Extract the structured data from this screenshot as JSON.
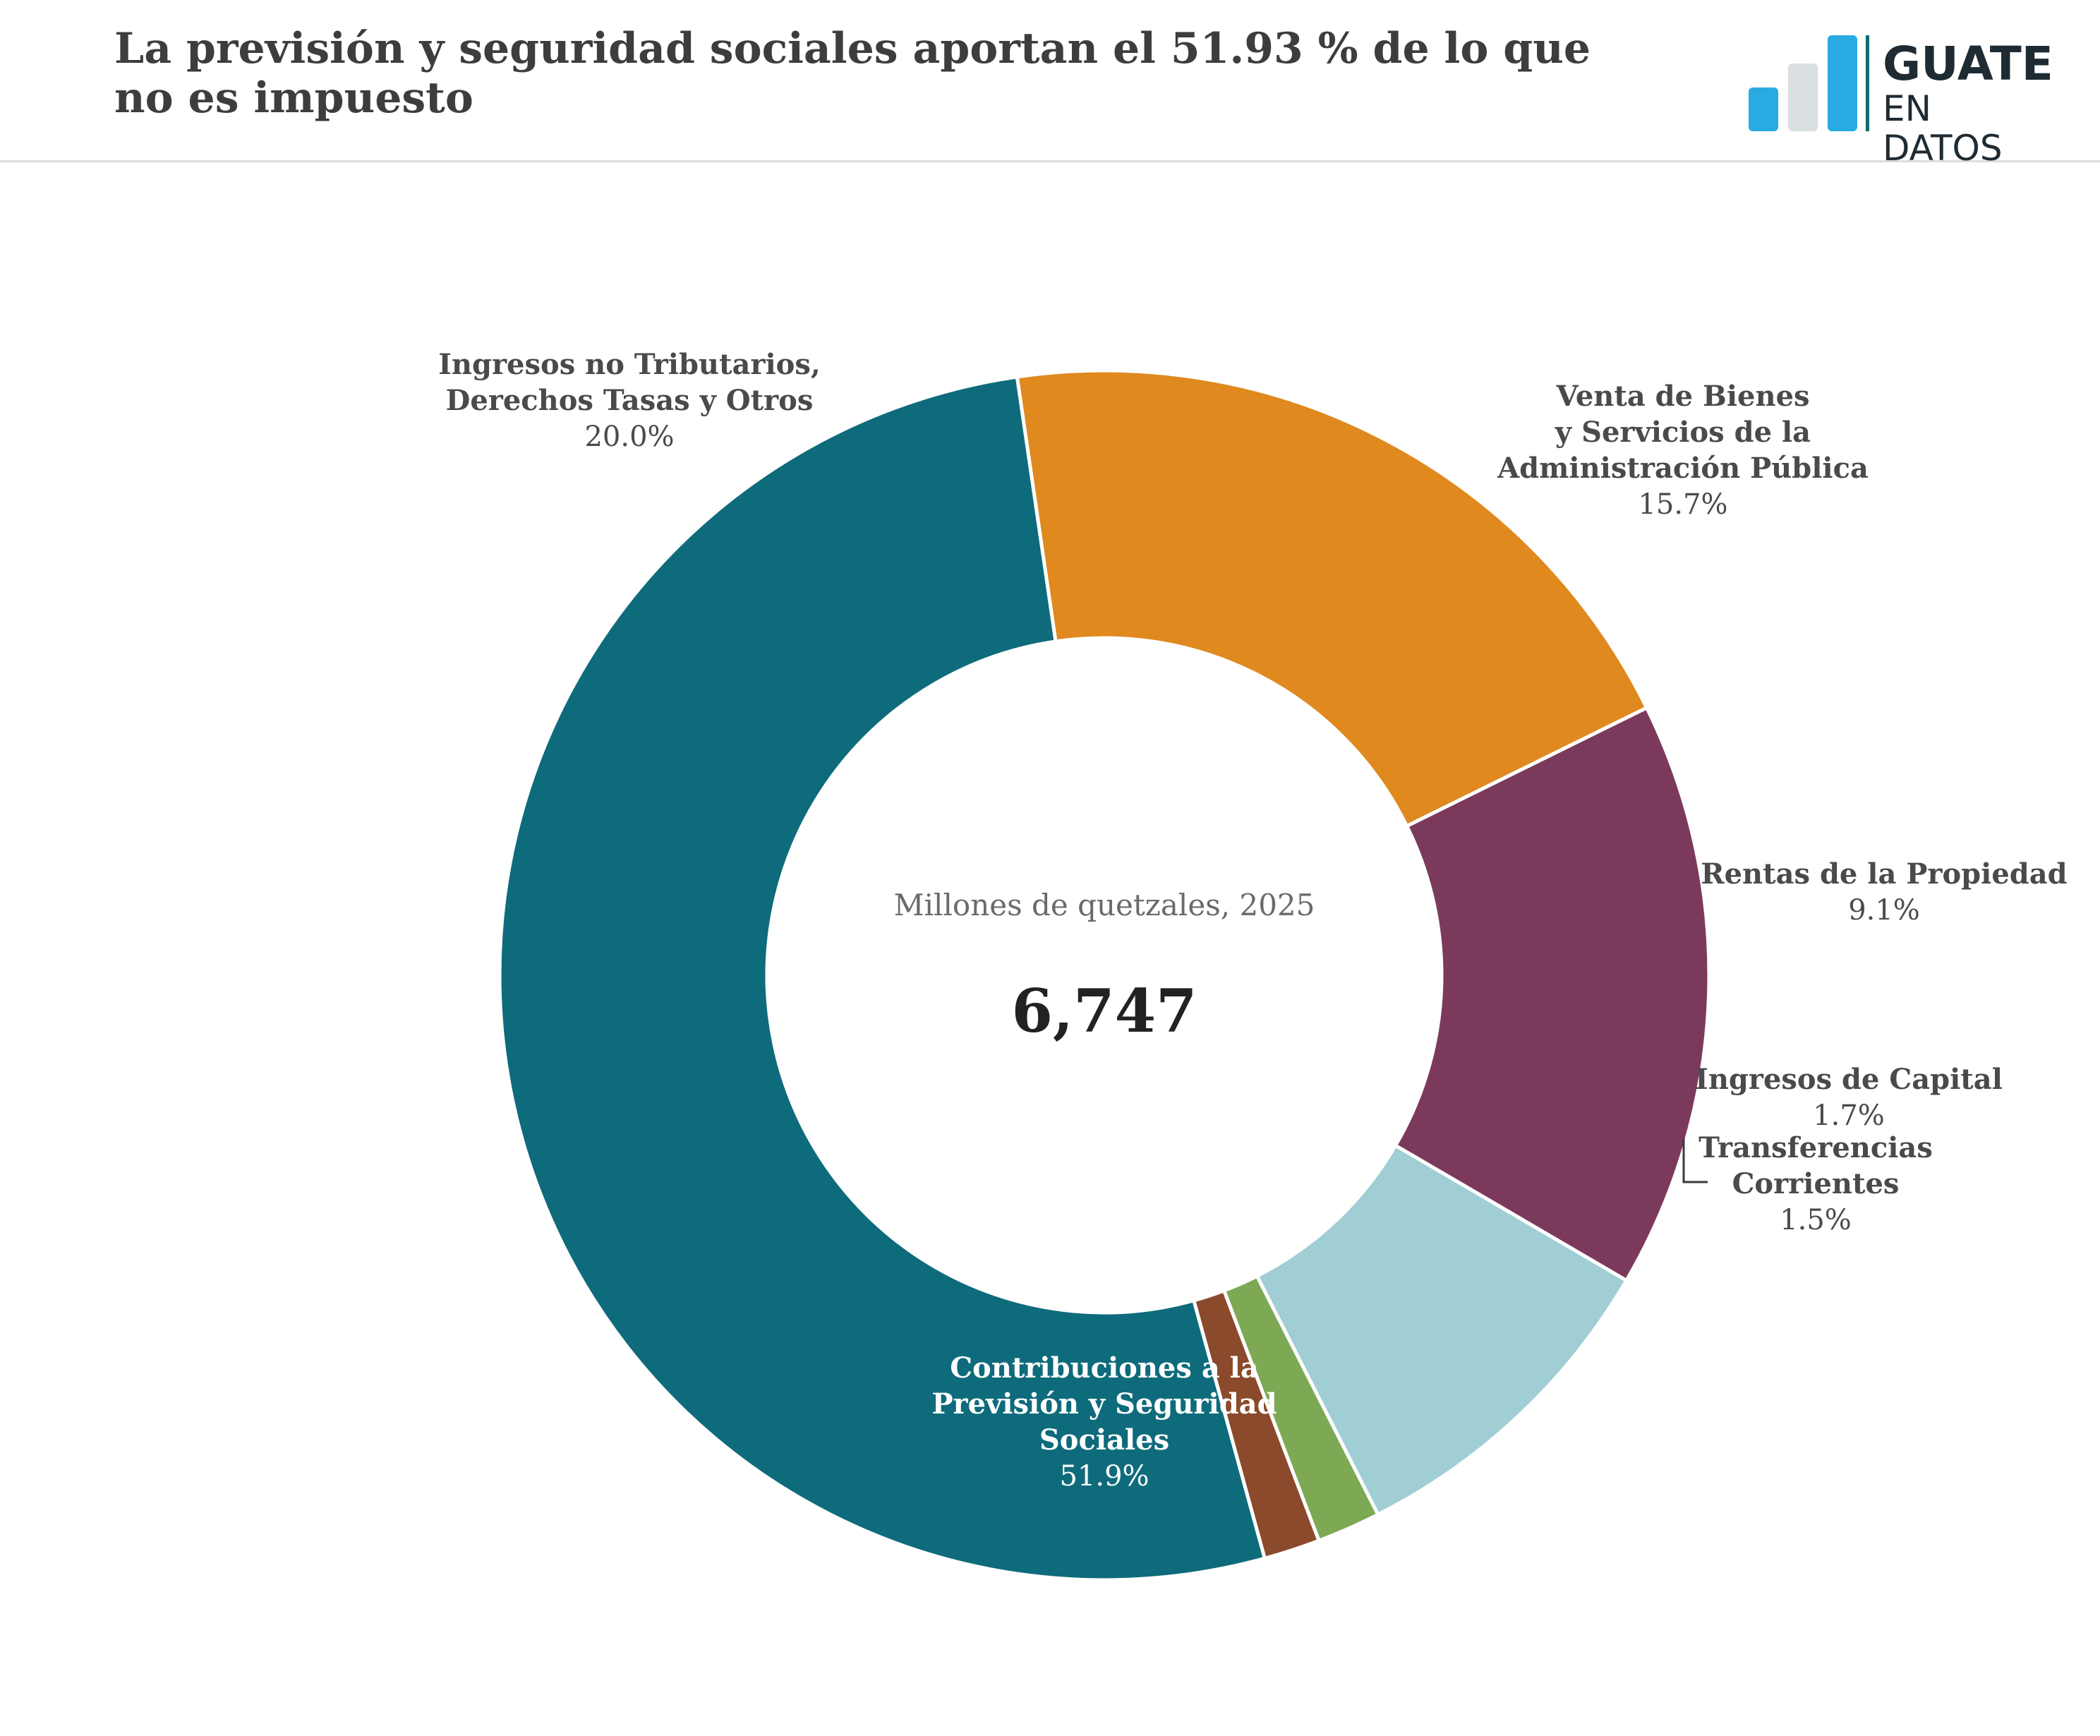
{
  "header": {
    "title": "La previsión y seguridad sociales aportan el 51.93 % de lo que no es impuesto",
    "logo": {
      "line1": "GUATE",
      "line2": "EN DATOS"
    }
  },
  "chart_data": {
    "type": "pie",
    "subtype": "donut",
    "center_label": "Millones de quetzales, 2025",
    "total": "6,747",
    "slices": [
      {
        "name": "Ingresos no Tributarios, Derechos Tasas y Otros",
        "lines": [
          "Ingresos no Tributarios,",
          "Derechos Tasas y Otros"
        ],
        "value": 20.0,
        "label": "20.0%",
        "color": "#df891f"
      },
      {
        "name": "Venta de Bienes y Servicios de la Administración Pública",
        "lines": [
          "Venta de Bienes",
          "y Servicios de la",
          "Administración Pública"
        ],
        "value": 15.7,
        "label": "15.7%",
        "color": "#7b3a5c"
      },
      {
        "name": "Rentas de la Propiedad",
        "lines": [
          "Rentas de la Propiedad"
        ],
        "value": 9.1,
        "label": "9.1%",
        "color": "#a1cdd4"
      },
      {
        "name": "Ingresos de Capital",
        "lines": [
          "Ingresos de Capital"
        ],
        "value": 1.7,
        "label": "1.7%",
        "color": "#7da955"
      },
      {
        "name": "Transferencias Corrientes",
        "lines": [
          "Transferencias",
          "Corrientes"
        ],
        "value": 1.5,
        "label": "1.5%",
        "color": "#8b4a2b"
      },
      {
        "name": "Contribuciones a la Previsión y Seguridad Sociales",
        "lines": [
          "Contribuciones a la",
          "Previsión y Seguridad",
          "Sociales"
        ],
        "value": 51.93,
        "label": "51.9%",
        "color": "#0e6b7b"
      }
    ]
  }
}
